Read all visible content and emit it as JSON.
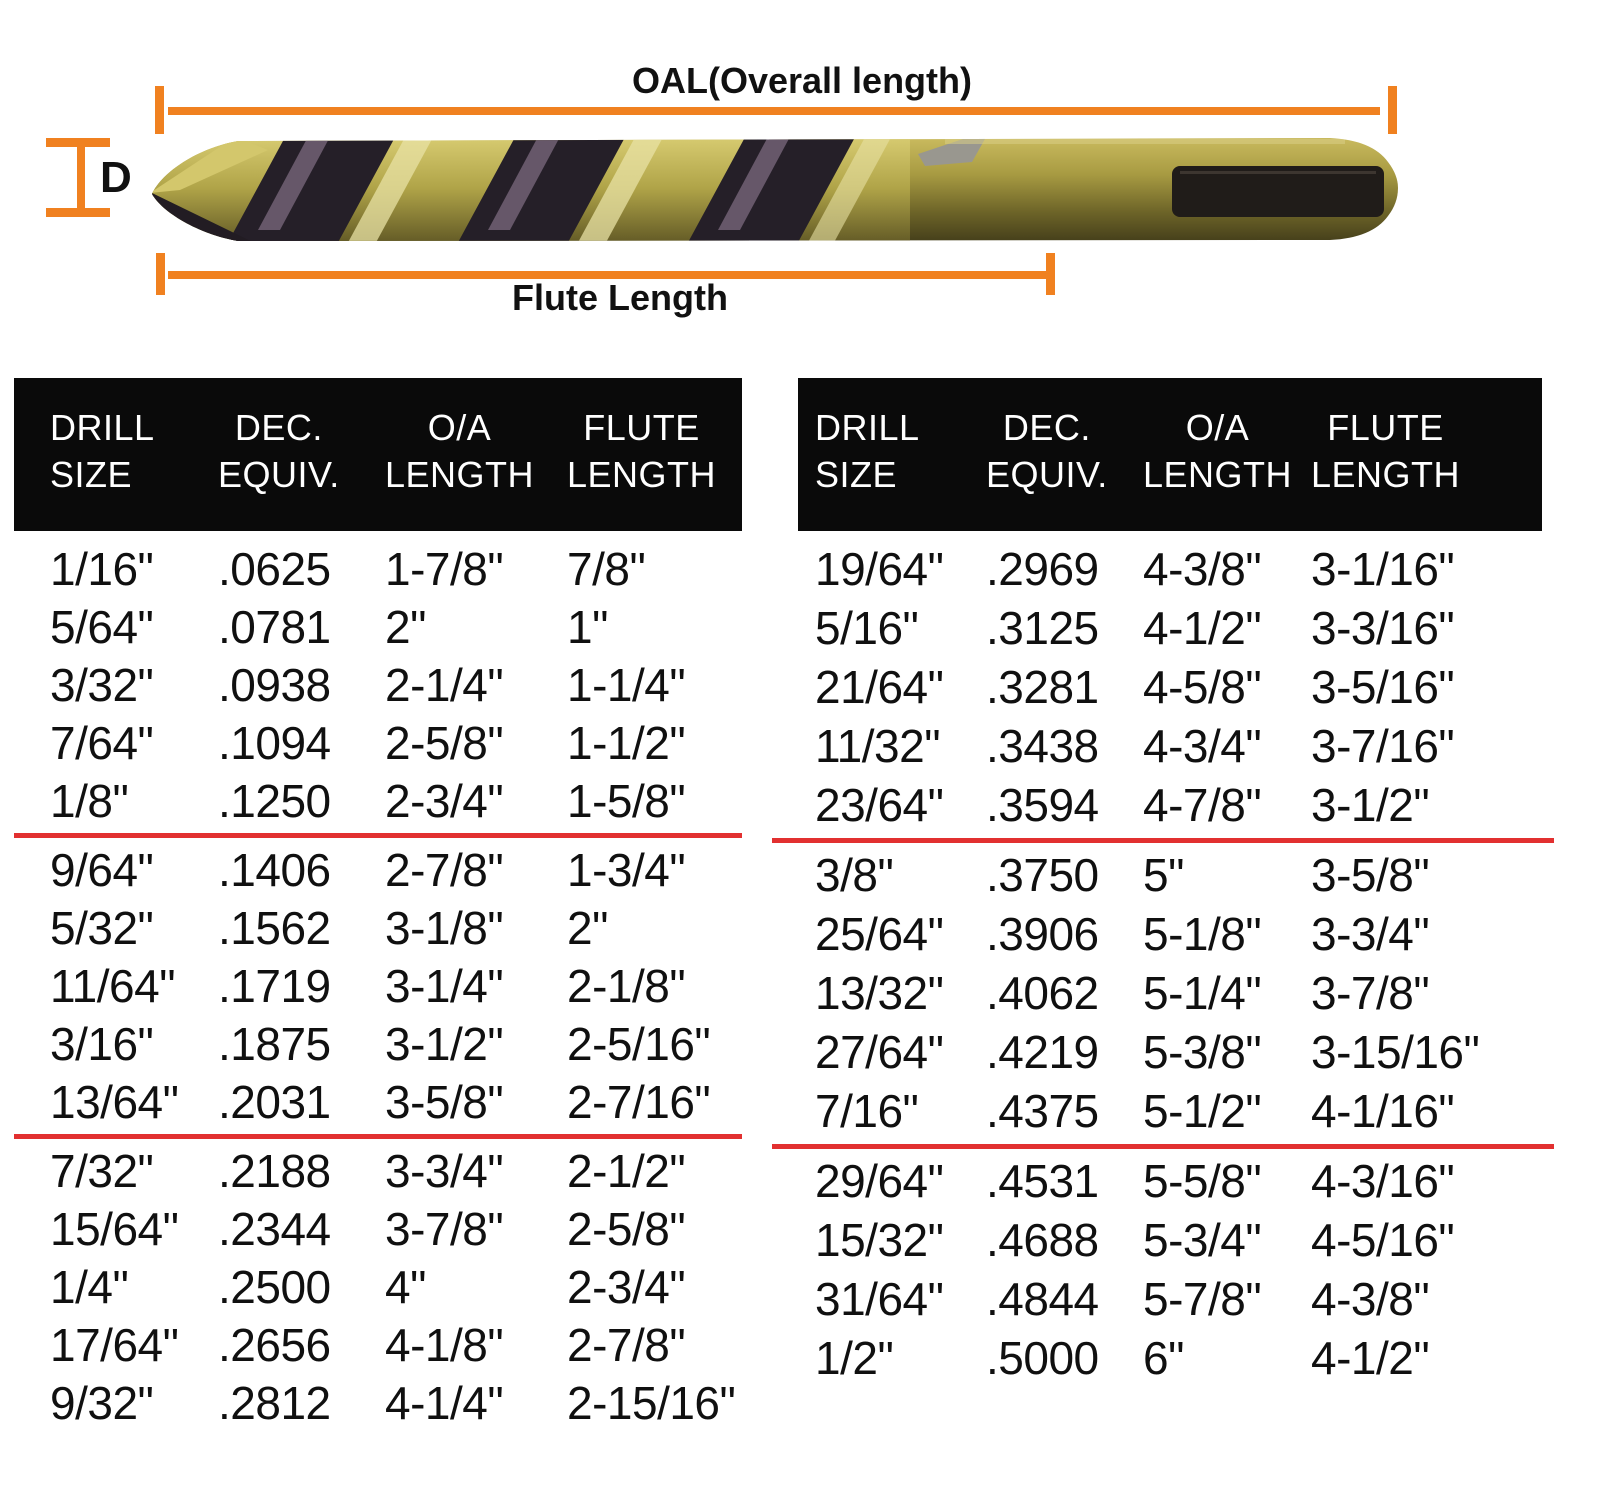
{
  "figure": {
    "oal_label": "OAL(Overall length)",
    "flute_label": "Flute Length",
    "diameter_label": "D",
    "accent_orange": "#F08120"
  },
  "colors": {
    "separator_red": "#E23030",
    "header_bg": "#0a0a0a",
    "header_text": "#ffffff",
    "body_text": "#101010"
  },
  "tables": {
    "columns": [
      {
        "line1": "DRILL",
        "line2": "SIZE"
      },
      {
        "line1": "DEC.",
        "line2": "EQUIV."
      },
      {
        "line1": "O/A",
        "line2": "LENGTH"
      },
      {
        "line1": "FLUTE",
        "line2": "LENGTH"
      }
    ],
    "left": {
      "groups": [
        [
          [
            "1/16\"",
            ".0625",
            "1-7/8\"",
            "7/8\""
          ],
          [
            "5/64\"",
            ".0781",
            "2\"",
            "1\""
          ],
          [
            "3/32\"",
            ".0938",
            "2-1/4\"",
            "1-1/4\""
          ],
          [
            "7/64\"",
            ".1094",
            "2-5/8\"",
            "1-1/2\""
          ],
          [
            "1/8\"",
            ".1250",
            "2-3/4\"",
            "1-5/8\""
          ]
        ],
        [
          [
            "9/64\"",
            ".1406",
            "2-7/8\"",
            "1-3/4\""
          ],
          [
            "5/32\"",
            ".1562",
            "3-1/8\"",
            "2\""
          ],
          [
            "11/64\"",
            ".1719",
            "3-1/4\"",
            "2-1/8\""
          ],
          [
            "3/16\"",
            ".1875",
            "3-1/2\"",
            "2-5/16\""
          ],
          [
            "13/64\"",
            ".2031",
            "3-5/8\"",
            "2-7/16\""
          ]
        ],
        [
          [
            "7/32\"",
            ".2188",
            "3-3/4\"",
            "2-1/2\""
          ],
          [
            "15/64\"",
            ".2344",
            "3-7/8\"",
            "2-5/8\""
          ],
          [
            "1/4\"",
            ".2500",
            "4\"",
            "2-3/4\""
          ],
          [
            "17/64\"",
            ".2656",
            "4-1/8\"",
            "2-7/8\""
          ],
          [
            "9/32\"",
            ".2812",
            "4-1/4\"",
            "2-15/16\""
          ]
        ]
      ]
    },
    "right": {
      "groups": [
        [
          [
            "19/64\"",
            ".2969",
            "4-3/8\"",
            "3-1/16\""
          ],
          [
            "5/16\"",
            ".3125",
            "4-1/2\"",
            "3-3/16\""
          ],
          [
            "21/64\"",
            ".3281",
            "4-5/8\"",
            "3-5/16\""
          ],
          [
            "11/32\"",
            ".3438",
            "4-3/4\"",
            "3-7/16\""
          ],
          [
            "23/64\"",
            ".3594",
            "4-7/8\"",
            "3-1/2\""
          ]
        ],
        [
          [
            "3/8\"",
            ".3750",
            "5\"",
            "3-5/8\""
          ],
          [
            "25/64\"",
            ".3906",
            "5-1/8\"",
            "3-3/4\""
          ],
          [
            "13/32\"",
            ".4062",
            "5-1/4\"",
            "3-7/8\""
          ],
          [
            "27/64\"",
            ".4219",
            "5-3/8\"",
            "3-15/16\""
          ],
          [
            "7/16\"",
            ".4375",
            "5-1/2\"",
            "4-1/16\""
          ]
        ],
        [
          [
            "29/64\"",
            ".4531",
            "5-5/8\"",
            "4-3/16\""
          ],
          [
            "15/32\"",
            ".4688",
            "5-3/4\"",
            "4-5/16\""
          ],
          [
            "31/64\"",
            ".4844",
            "5-7/8\"",
            "4-3/8\""
          ],
          [
            "1/2\"",
            ".5000",
            "6\"",
            "4-1/2\""
          ]
        ]
      ]
    }
  }
}
